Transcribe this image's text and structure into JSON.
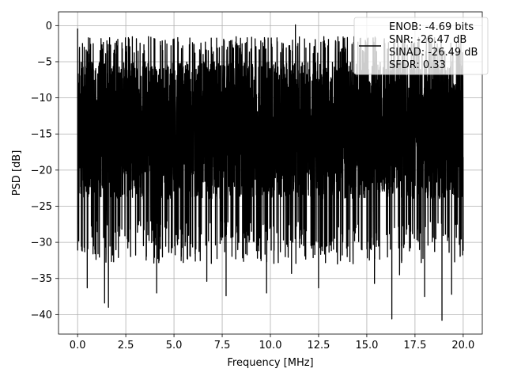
{
  "chart_data": {
    "type": "line",
    "title": "",
    "xlabel": "Frequency [MHz]",
    "ylabel": "PSD [dB]",
    "xlim": [
      -0.99,
      20.99
    ],
    "ylim": [
      -42.7,
      1.9
    ],
    "x_ticks": [
      0.0,
      2.5,
      5.0,
      7.5,
      10.0,
      12.5,
      15.0,
      17.5,
      20.0
    ],
    "x_tick_labels": [
      "0.0",
      "2.5",
      "5.0",
      "7.5",
      "10.0",
      "12.5",
      "15.0",
      "17.5",
      "20.0"
    ],
    "y_ticks": [
      0,
      -5,
      -10,
      -15,
      -20,
      -25,
      -30,
      -35,
      -40
    ],
    "y_tick_labels": [
      "0",
      "−5",
      "−10",
      "−15",
      "−20",
      "−25",
      "−30",
      "−35",
      "−40"
    ],
    "grid": true,
    "legend_position": "top-right",
    "line_color": "#000000",
    "series": [
      {
        "name": "",
        "legend_text": [
          "ENOB: -4.69 bits",
          "SNR: -26.47 dB",
          "SINAD: -26.49 dB",
          "SFDR: 0.33"
        ],
        "x_range": [
          0.0,
          20.0
        ],
        "peaks": [
          {
            "x": 0.0,
            "y": -0.4
          },
          {
            "x": 0.1,
            "y": -3.0
          },
          {
            "x": 0.2,
            "y": -9.7
          },
          {
            "x": 11.3,
            "y": 0.1
          },
          {
            "x": 10.6,
            "y": -2.4
          },
          {
            "x": 15.9,
            "y": -2.0
          },
          {
            "x": 8.5,
            "y": -4.0
          },
          {
            "x": 6.4,
            "y": -3.8
          }
        ],
        "dips": [
          {
            "x": 0.5,
            "y": -36.3
          },
          {
            "x": 0.8,
            "y": -31.6
          },
          {
            "x": 1.4,
            "y": -38.4
          },
          {
            "x": 1.6,
            "y": -39.0
          },
          {
            "x": 4.1,
            "y": -37.0
          },
          {
            "x": 6.7,
            "y": -35.4
          },
          {
            "x": 7.7,
            "y": -37.4
          },
          {
            "x": 9.8,
            "y": -37.0
          },
          {
            "x": 11.1,
            "y": -34.3
          },
          {
            "x": 12.5,
            "y": -36.3
          },
          {
            "x": 15.4,
            "y": -35.7
          },
          {
            "x": 16.3,
            "y": -40.6
          },
          {
            "x": 16.7,
            "y": -34.5
          },
          {
            "x": 18.0,
            "y": -37.5
          },
          {
            "x": 18.9,
            "y": -40.8
          },
          {
            "x": 19.4,
            "y": -37.2
          }
        ],
        "band_upper_typical": -4.0,
        "band_lower_typical": -27.0
      }
    ]
  }
}
